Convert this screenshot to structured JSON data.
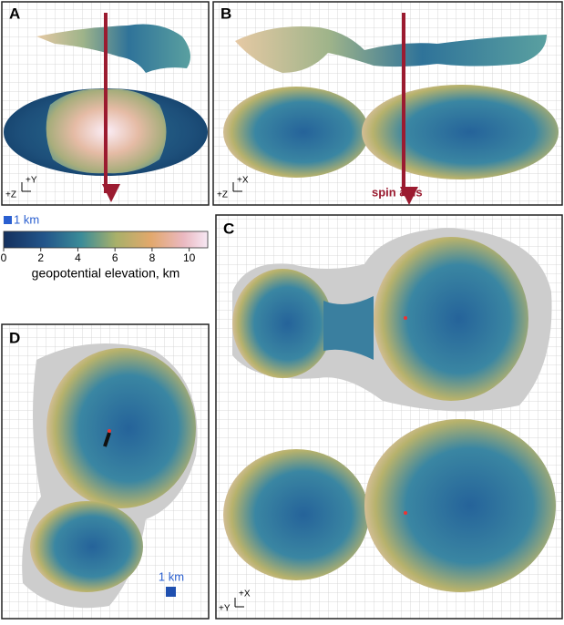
{
  "panels": [
    {
      "label": "A",
      "axes": [
        "+Y",
        "+Z"
      ]
    },
    {
      "label": "B",
      "axes": [
        "+X",
        "+Z"
      ],
      "annotation": "spin axis"
    },
    {
      "label": "C",
      "axes": [
        "+X",
        "+Y"
      ]
    },
    {
      "label": "D",
      "scale": "1 km"
    }
  ],
  "colorbar": {
    "scale": "1 km",
    "label": "geopotential elevation, km",
    "lim": [
      0,
      11
    ],
    "ticks": [
      0,
      2,
      4,
      6,
      8,
      10
    ]
  }
}
